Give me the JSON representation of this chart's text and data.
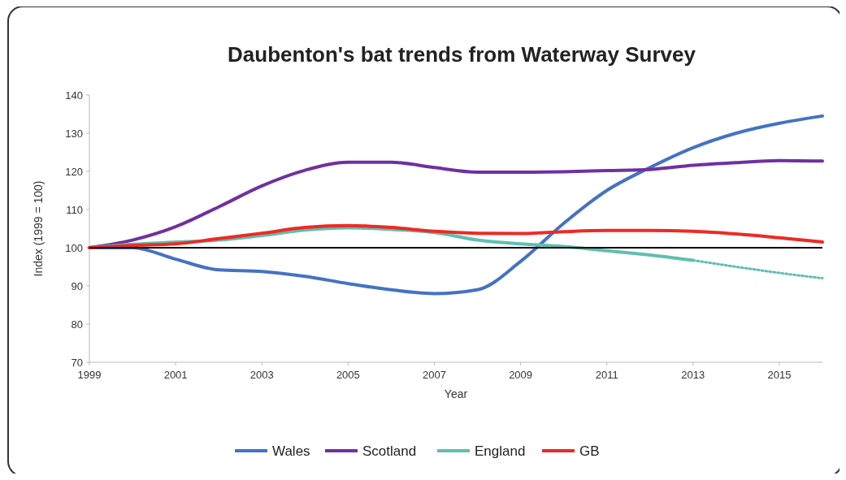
{
  "chart_data": {
    "type": "line",
    "title": "Daubenton's bat trends from Waterway Survey",
    "xlabel": "Year",
    "ylabel": "Index (1999 = 100)",
    "x": [
      1999,
      2000,
      2001,
      2002,
      2003,
      2004,
      2005,
      2006,
      2007,
      2008,
      2009,
      2010,
      2011,
      2012,
      2013,
      2014,
      2015,
      2016
    ],
    "xlim": [
      1999,
      2016
    ],
    "xticks": [
      1999,
      2001,
      2003,
      2005,
      2007,
      2009,
      2011,
      2013,
      2015
    ],
    "ylim": [
      70,
      140
    ],
    "yticks": [
      70,
      80,
      90,
      100,
      110,
      120,
      130,
      140
    ],
    "grid": false,
    "legend": "bottom",
    "marker": "none",
    "line_style": "solid",
    "ref_lines": [
      {
        "axis": "y",
        "value": 100,
        "color": "#000000"
      }
    ],
    "series": [
      {
        "name": "Wales",
        "color": "#4472c4",
        "values": [
          100,
          100,
          97,
          94.2,
          93.8,
          92.5,
          90.6,
          89,
          88,
          89,
          96.4,
          106.4,
          115,
          121,
          126.2,
          130,
          132.6,
          134.5
        ]
      },
      {
        "name": "Scotland",
        "color": "#7030a0",
        "values": [
          100,
          102,
          105.5,
          110.7,
          116.2,
          120.3,
          122.4,
          122.4,
          121,
          119.8,
          119.8,
          119.9,
          120.2,
          120.5,
          121.6,
          122.3,
          122.8,
          122.7
        ]
      },
      {
        "name": "England",
        "color": "#5fbfb0",
        "x": [
          1999,
          2000,
          2001,
          2002,
          2003,
          2004,
          2005,
          2006,
          2007,
          2008,
          2009,
          2010,
          2011,
          2012,
          2013
        ],
        "values": [
          100,
          100.9,
          101.5,
          102,
          103.2,
          104.6,
          105.2,
          104.8,
          104,
          102,
          101,
          100.3,
          99.2,
          98.1,
          96.7
        ]
      },
      {
        "color": "#5fbfb0",
        "line_style": "dotted",
        "x": [
          2013,
          2014,
          2015,
          2016
        ],
        "values": [
          96.7,
          95,
          93.4,
          92
        ]
      },
      {
        "name": "GB",
        "color": "#ee2a24",
        "values": [
          100,
          100.6,
          101,
          102.4,
          103.8,
          105.3,
          105.8,
          105.3,
          104.3,
          103.8,
          103.7,
          104.2,
          104.5,
          104.5,
          104.3,
          103.6,
          102.6,
          101.5
        ]
      }
    ]
  }
}
